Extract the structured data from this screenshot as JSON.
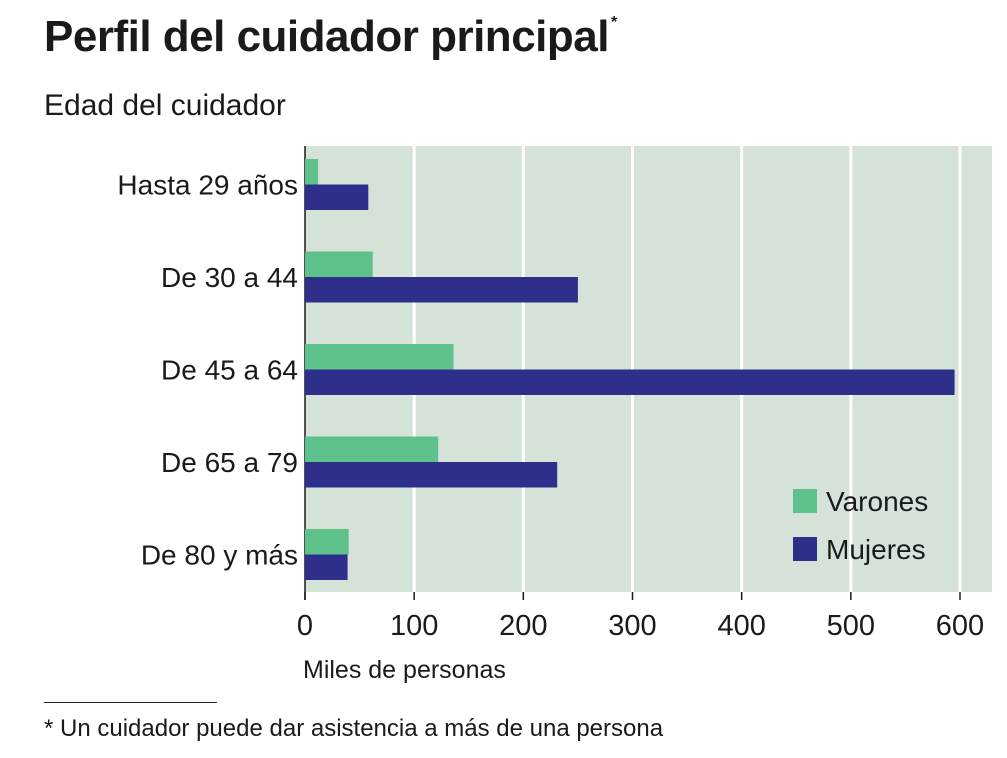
{
  "title": "Perfil del cuidador principal",
  "title_mark": "*",
  "subtitle": "Edad del cuidador",
  "footnote": "* Un cuidador puede dar asistencia a más de una persona",
  "colors": {
    "plot_background": "#d4e2d8",
    "gridline": "#ffffff",
    "varones": "#5ec08a",
    "mujeres": "#2d2f8a"
  },
  "chart_data": {
    "type": "bar",
    "orientation": "horizontal",
    "categories": [
      "Hasta 29 años",
      "De 30 a 44",
      "De 45 a 64",
      "De 65 a 79",
      "De 80 y más"
    ],
    "series": [
      {
        "name": "Varones",
        "values": [
          12,
          62,
          136,
          122,
          40
        ]
      },
      {
        "name": "Mujeres",
        "values": [
          58,
          250,
          595,
          231,
          39
        ]
      }
    ],
    "xlabel": "Miles de personas",
    "xlim": [
      0,
      625
    ],
    "xticks": [
      0,
      100,
      200,
      300,
      400,
      500,
      600
    ],
    "grid": true,
    "legend_position": "bottom-right"
  }
}
